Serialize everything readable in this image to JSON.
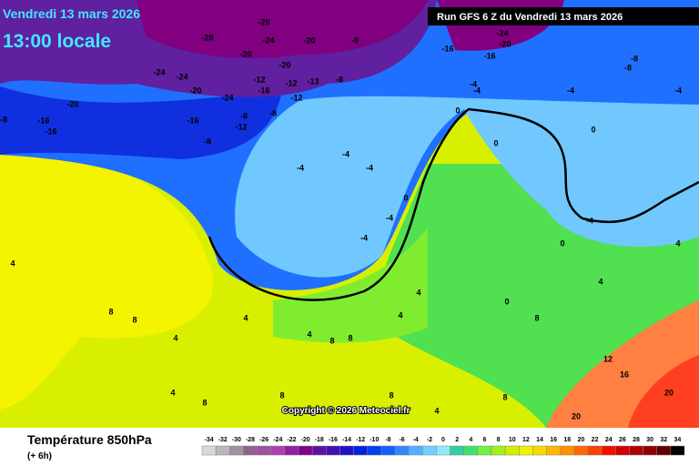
{
  "header": {
    "date": "Vendredi 13 mars 2026",
    "time": "13:00 locale",
    "run": "Run GFS 6 Z du Vendredi 13 mars 2026"
  },
  "copyright": "Copyright © 2026 Meteociel.fr",
  "footer": {
    "title": "Température 850hPa",
    "step": "(+ 6h)"
  },
  "legend": {
    "values": [
      -34,
      -32,
      -30,
      -28,
      -26,
      -24,
      -22,
      -20,
      -18,
      -16,
      -14,
      -12,
      -10,
      -8,
      -6,
      -4,
      -2,
      0,
      2,
      4,
      6,
      8,
      10,
      12,
      14,
      16,
      18,
      20,
      22,
      24,
      26,
      28,
      30,
      32,
      34
    ],
    "colors": [
      "#d8d8d8",
      "#b8b8b8",
      "#a090a0",
      "#906090",
      "#a050a0",
      "#b040b0",
      "#9020a0",
      "#800090",
      "#6010a0",
      "#4010b0",
      "#2010c8",
      "#0020e0",
      "#0040f0",
      "#1060ff",
      "#3088ff",
      "#50b0ff",
      "#70d0ff",
      "#90e8ff",
      "#30d0a0",
      "#40e070",
      "#70f040",
      "#a0f020",
      "#d0f000",
      "#f0f000",
      "#f8d800",
      "#ffb800",
      "#ff9000",
      "#ff6800",
      "#ff4000",
      "#f01000",
      "#d00000",
      "#b00000",
      "#900000",
      "#600000",
      "#000000"
    ]
  },
  "map_labels": [
    "-20",
    "-24",
    "-28",
    "-20",
    "-8",
    "-24",
    "-24",
    "-20",
    "-20",
    "-12",
    "-16",
    "-20",
    "-12",
    "-13",
    "-8",
    "-24",
    "-12",
    "-8",
    "-16",
    "-8",
    "-12",
    "-8",
    "-20",
    "-16",
    "-16",
    "-8",
    "-24",
    "-20",
    "-16",
    "-16",
    "-8",
    "-8",
    "-4",
    "-4",
    "-4",
    "-4",
    "0",
    "0",
    "0",
    "-4",
    "-4",
    "-4",
    "0",
    "-4",
    "-4",
    "4",
    "8",
    "8",
    "4",
    "8",
    "8",
    "4",
    "4",
    "4",
    "0",
    "8",
    "4",
    "0",
    "-4",
    "4",
    "12",
    "16",
    "20",
    "20",
    "8",
    "8",
    "4",
    "8",
    "4",
    "8",
    "4"
  ]
}
